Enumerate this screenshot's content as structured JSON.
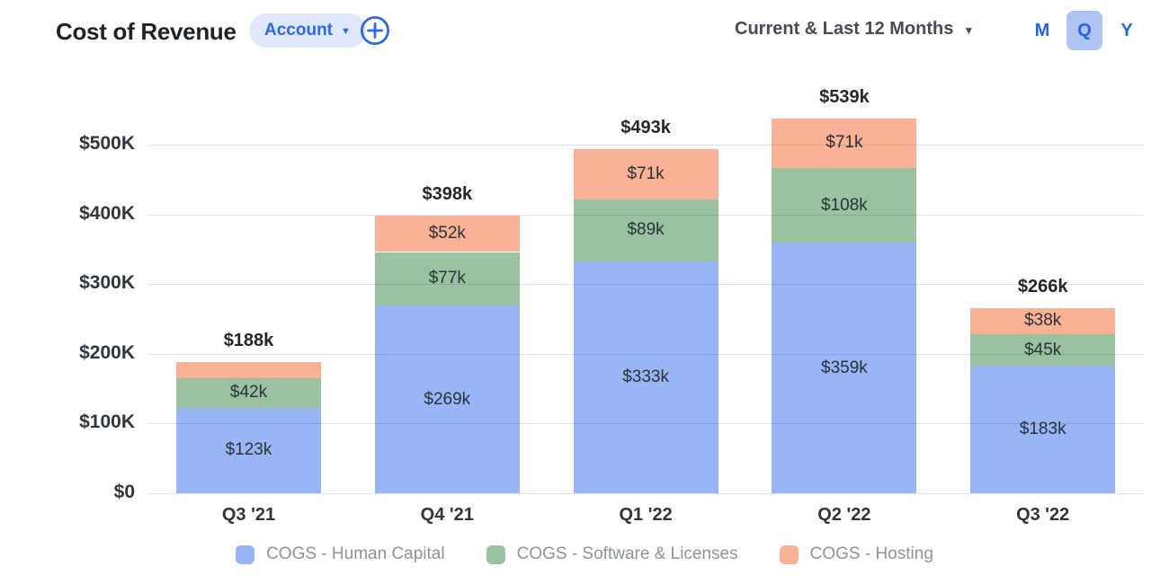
{
  "header": {
    "title": "Cost of Revenue",
    "account_dropdown": {
      "label": "Account",
      "caret": "▼"
    },
    "range_dropdown": {
      "label": "Current & Last 12 Months",
      "caret": "▼"
    },
    "granularity": {
      "options": [
        "M",
        "Q",
        "Y"
      ],
      "selected": "Q"
    }
  },
  "chart_data": {
    "type": "bar",
    "stacked": true,
    "title": "Cost of Revenue",
    "categories": [
      "Q3 '21",
      "Q4 '21",
      "Q1 '22",
      "Q2 '22",
      "Q3 '22"
    ],
    "series": [
      {
        "name": "COGS - Human Capital",
        "color": "#98b5f6",
        "values_k": [
          123,
          269,
          333,
          359,
          183
        ],
        "labels": [
          "$123k",
          "$269k",
          "$333k",
          "$359k",
          "$183k"
        ]
      },
      {
        "name": "COGS - Software & Licenses",
        "color": "#9ac2a1",
        "values_k": [
          42,
          77,
          89,
          108,
          45
        ],
        "labels": [
          "$42k",
          "$77k",
          "$89k",
          "$108k",
          "$45k"
        ]
      },
      {
        "name": "COGS - Hosting",
        "color": "#f9b295",
        "values_k": [
          23,
          52,
          71,
          71,
          38
        ],
        "labels": [
          "",
          "$52k",
          "$71k",
          "$71k",
          "$38k"
        ]
      }
    ],
    "total_labels": [
      "$188k",
      "$398k",
      "$493k",
      "$539k",
      "$266k"
    ],
    "y_ticks": [
      "$0",
      "$100K",
      "$200K",
      "$300K",
      "$400K",
      "$500K"
    ],
    "y_max_k": 500,
    "units": "USD thousands",
    "grid": true,
    "legend_position": "bottom"
  }
}
